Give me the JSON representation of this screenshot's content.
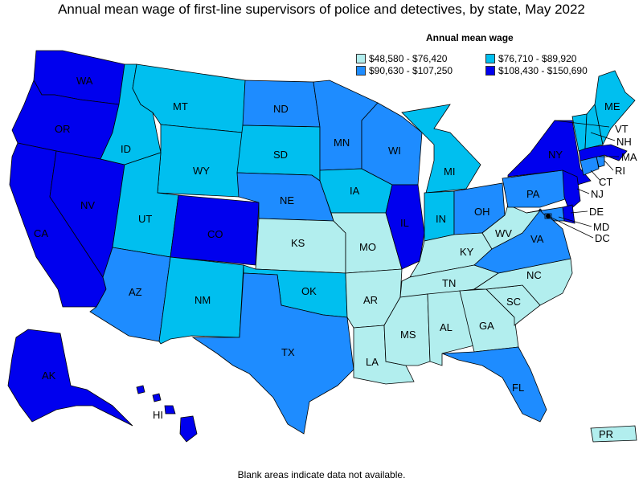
{
  "title": "Annual mean wage of first-line supervisors of police and detectives, by state, May 2022",
  "legend": {
    "title": "Annual mean wage",
    "items": [
      {
        "label": "$48,580 - $76,420",
        "color": "#b2eeee"
      },
      {
        "label": "$76,710 - $89,920",
        "color": "#00bfef"
      },
      {
        "label": "$90,630 - $107,250",
        "color": "#1e8cff"
      },
      {
        "label": "$108,430 - $150,690",
        "color": "#0000ee"
      }
    ]
  },
  "footnote": "Blank areas indicate data not available.",
  "colors": {
    "c1": "#b2eeee",
    "c2": "#00bfef",
    "c3": "#1e8cff",
    "c4": "#0000ee"
  },
  "states": {
    "WA": "c4",
    "OR": "c4",
    "CA": "c4",
    "NV": "c4",
    "ID": "c2",
    "MT": "c2",
    "WY": "c2",
    "UT": "c2",
    "AZ": "c3",
    "CO": "c4",
    "NM": "c2",
    "ND": "c3",
    "SD": "c2",
    "NE": "c3",
    "KS": "c1",
    "OK": "c2",
    "TX": "c3",
    "MN": "c3",
    "IA": "c2",
    "MO": "c1",
    "AR": "c1",
    "LA": "c1",
    "WI": "c3",
    "IL": "c4",
    "MI": "c2",
    "IN": "c2",
    "OH": "c3",
    "KY": "c1",
    "TN": "c1",
    "MS": "c1",
    "AL": "c1",
    "GA": "c1",
    "FL": "c3",
    "SC": "c1",
    "NC": "c1",
    "VA": "c3",
    "WV": "c1",
    "PA": "c3",
    "NY": "c4",
    "VT": "c2",
    "NH": "c2",
    "ME": "c2",
    "MA": "c4",
    "RI": "c3",
    "CT": "c3",
    "NJ": "c4",
    "DE": "c4",
    "MD": "c3",
    "DC": "c3",
    "AK": "c4",
    "HI": "c4",
    "PR": "c1"
  }
}
